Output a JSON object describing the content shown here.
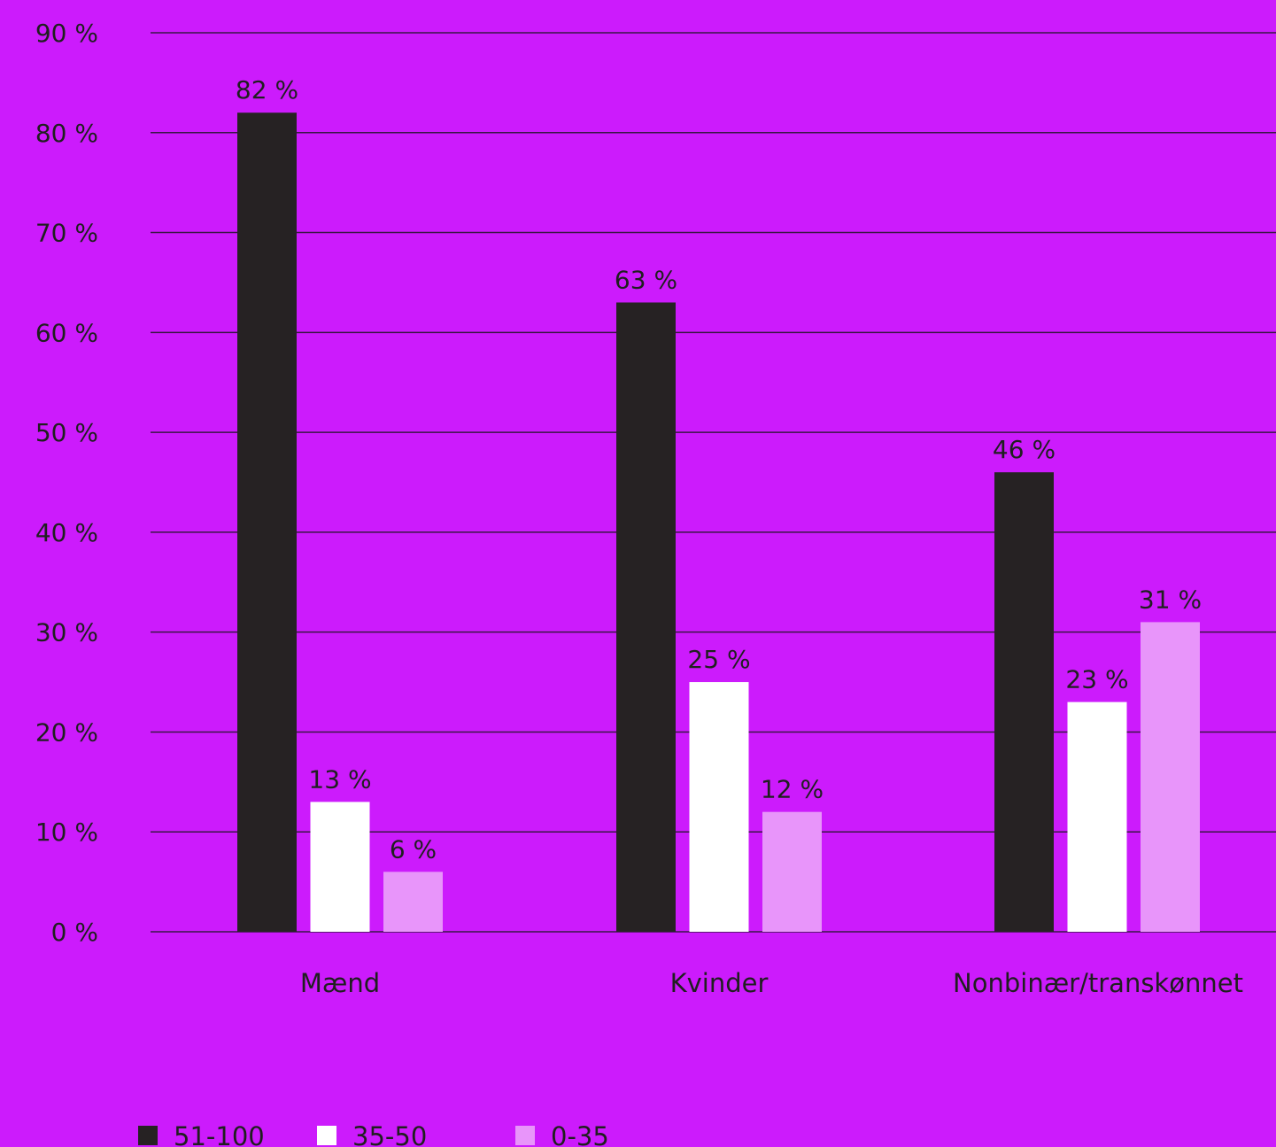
{
  "chart_data": {
    "type": "bar",
    "categories": [
      "Mænd",
      "Kvinder",
      "Nonbinær/transkønnet"
    ],
    "series": [
      {
        "name": "51-100",
        "values": [
          82,
          63,
          46
        ],
        "labels": [
          "82 %",
          "63 %",
          "46 %"
        ],
        "color": "#262223"
      },
      {
        "name": "35-50",
        "values": [
          13,
          25,
          23
        ],
        "labels": [
          "13 %",
          "25 %",
          "23 %"
        ],
        "color": "#ffffff"
      },
      {
        "name": "0-35",
        "values": [
          6,
          12,
          31
        ],
        "labels": [
          "6 %",
          "12 %",
          "31 %"
        ],
        "color": "#e895fa"
      }
    ],
    "ylim": [
      0,
      90
    ],
    "yticks": [
      0,
      10,
      20,
      30,
      40,
      50,
      60,
      70,
      80,
      90
    ],
    "ytick_labels": [
      "0 %",
      "10 %",
      "20 %",
      "30 %",
      "40 %",
      "50 %",
      "60 %",
      "70 %",
      "80 %",
      "90 %"
    ],
    "grid": true,
    "legend_position": "bottom-left",
    "background": "#cc1bfc",
    "gridline_color": "#3a1646"
  }
}
